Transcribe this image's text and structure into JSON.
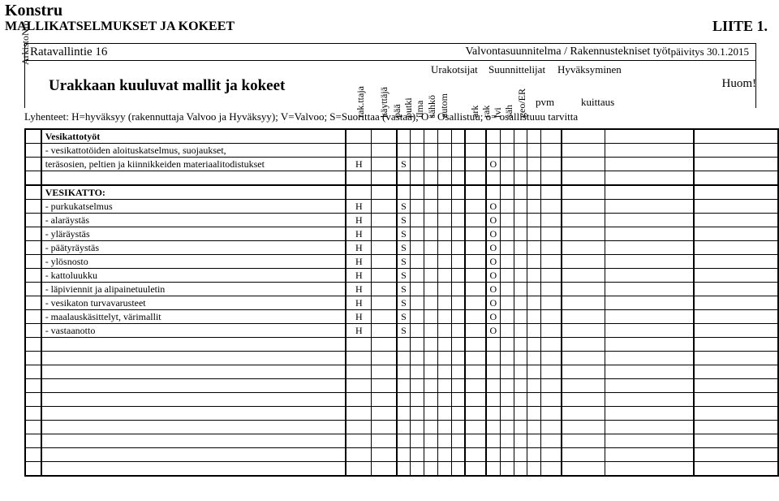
{
  "title": "Konstru",
  "subtitle": "MALLIKATSELMUKSET JA KOKEET",
  "attachment": "LIITE 1.",
  "header": {
    "address": "Ratavallintie 16",
    "plan": "Valvontasuunnitelma / Rakennustekniset työt",
    "revision": "päivitys 30.1.2015"
  },
  "arkisto_label": "ArkistoNro",
  "main_heading": "Urakkaan kuuluvat mallit ja kokeet",
  "huom": "Huom!",
  "groups": {
    "urak": "Urakotsijat",
    "suun": "Suunnittelijat",
    "hyv": "Hyväksyminen"
  },
  "vcols": {
    "rakttaja": "rak.ttaja",
    "kayttaja": "käyttäjä",
    "paa": "pää",
    "putki": "putki",
    "ilma": "ilma",
    "sahko": "sähkö",
    "autom": "autom",
    "ark": "ark",
    "rak": "rak",
    "lvi": "lvi",
    "sah": "säh",
    "geo": "geo/ER"
  },
  "hyv_cols": {
    "pvm": "pvm",
    "kuittaus": "kuittaus"
  },
  "legend": "Lyhenteet:   H=hyväksyy  (rakennuttaja Valvoo ja Hyväksyy);       V=Valvoo;      S=Suorittaa (vastaa);        O= Osallistuu; o= osallistuuu tarvitta",
  "sections": [
    {
      "heading": "Vesikattotyöt",
      "intro_lines": [
        "- vesikattotöiden aloituskatselmus, suojaukset,"
      ],
      "rows": [
        {
          "desc": "teräsosien, peltien ja kiinnikkeiden materiaalitodistukset",
          "vals": {
            "c1": "H",
            "c3": "S",
            "c9": "O"
          }
        }
      ]
    },
    {
      "heading": "VESIKATTO:",
      "rows": [
        {
          "desc": "- purkukatselmus",
          "vals": {
            "c1": "H",
            "c3": "S",
            "c9": "O"
          }
        },
        {
          "desc": "- alaräystäs",
          "vals": {
            "c1": "H",
            "c3": "S",
            "c9": "O"
          }
        },
        {
          "desc": "- yläräystäs",
          "vals": {
            "c1": "H",
            "c3": "S",
            "c9": "O"
          }
        },
        {
          "desc": "- päätyräystäs",
          "vals": {
            "c1": "H",
            "c3": "S",
            "c9": "O"
          }
        },
        {
          "desc": "- ylösnosto",
          "vals": {
            "c1": "H",
            "c3": "S",
            "c9": "O"
          }
        },
        {
          "desc": "- kattoluukku",
          "vals": {
            "c1": "H",
            "c3": "S",
            "c9": "O"
          }
        },
        {
          "desc": "- läpiviennit ja alipainetuuletin",
          "vals": {
            "c1": "H",
            "c3": "S",
            "c9": "O"
          }
        },
        {
          "desc": "- vesikaton turvavarusteet",
          "vals": {
            "c1": "H",
            "c3": "S",
            "c9": "O"
          }
        },
        {
          "desc": "- maalauskäsittelyt, värimallit",
          "vals": {
            "c1": "H",
            "c3": "S",
            "c9": "O"
          }
        },
        {
          "desc": "- vastaanotto",
          "vals": {
            "c1": "H",
            "c3": "S",
            "c9": "O"
          }
        }
      ]
    }
  ],
  "blank_rows": 10,
  "col_keys": [
    "c1",
    "c2",
    "c3",
    "c4",
    "c5",
    "c6",
    "c7",
    "c8",
    "c9",
    "c10",
    "c11",
    "c12",
    "c13",
    "c14",
    "c15",
    "c16"
  ]
}
